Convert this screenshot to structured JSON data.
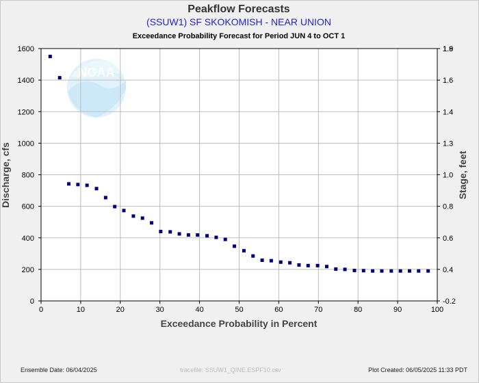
{
  "chart_data": {
    "type": "scatter",
    "title": "Peakflow Forecasts",
    "subtitle": "(SSUW1) SF SKOKOMISH - NEAR UNION",
    "period_label": "Exceedance Probability Forecast for Period JUN 4 to OCT 1",
    "xlabel": "Exceedance Probability in Percent",
    "ylabel": "Discharge, cfs",
    "y2label": "Stage, feet",
    "xlim": [
      0,
      100
    ],
    "ylim": [
      0,
      1600
    ],
    "x_ticks": [
      0,
      10,
      20,
      30,
      40,
      50,
      60,
      70,
      80,
      90,
      100
    ],
    "y_ticks": [
      0,
      200,
      400,
      600,
      800,
      1000,
      1200,
      1400,
      1600
    ],
    "y2_ticks": [
      "-0.2",
      "0.4",
      "0.6",
      "0.8",
      "1.0",
      "1.3",
      "1.4",
      "1.6",
      "1.8",
      "1.9"
    ],
    "grid": true,
    "marker_color": "#00007f",
    "points": [
      {
        "x": 2.3,
        "y": 1550
      },
      {
        "x": 4.7,
        "y": 1415
      },
      {
        "x": 7.0,
        "y": 742
      },
      {
        "x": 9.3,
        "y": 738
      },
      {
        "x": 11.6,
        "y": 733
      },
      {
        "x": 14.0,
        "y": 712
      },
      {
        "x": 16.3,
        "y": 655
      },
      {
        "x": 18.6,
        "y": 598
      },
      {
        "x": 20.9,
        "y": 573
      },
      {
        "x": 23.3,
        "y": 538
      },
      {
        "x": 25.6,
        "y": 525
      },
      {
        "x": 27.9,
        "y": 495
      },
      {
        "x": 30.2,
        "y": 440
      },
      {
        "x": 32.6,
        "y": 438
      },
      {
        "x": 34.9,
        "y": 425
      },
      {
        "x": 37.2,
        "y": 418
      },
      {
        "x": 39.5,
        "y": 418
      },
      {
        "x": 41.9,
        "y": 413
      },
      {
        "x": 44.2,
        "y": 403
      },
      {
        "x": 46.5,
        "y": 390
      },
      {
        "x": 48.8,
        "y": 347
      },
      {
        "x": 51.2,
        "y": 318
      },
      {
        "x": 53.5,
        "y": 285
      },
      {
        "x": 55.8,
        "y": 258
      },
      {
        "x": 58.1,
        "y": 255
      },
      {
        "x": 60.5,
        "y": 246
      },
      {
        "x": 62.8,
        "y": 242
      },
      {
        "x": 65.1,
        "y": 228
      },
      {
        "x": 67.4,
        "y": 224
      },
      {
        "x": 69.8,
        "y": 224
      },
      {
        "x": 72.1,
        "y": 218
      },
      {
        "x": 74.4,
        "y": 202
      },
      {
        "x": 76.7,
        "y": 200
      },
      {
        "x": 79.1,
        "y": 193
      },
      {
        "x": 81.4,
        "y": 192
      },
      {
        "x": 83.7,
        "y": 190
      },
      {
        "x": 86.0,
        "y": 190
      },
      {
        "x": 88.4,
        "y": 190
      },
      {
        "x": 90.7,
        "y": 190
      },
      {
        "x": 93.0,
        "y": 190
      },
      {
        "x": 95.3,
        "y": 190
      },
      {
        "x": 97.7,
        "y": 190
      }
    ]
  },
  "footer": {
    "ensemble_date": "Ensemble Date: 06/04/2025",
    "tracefile": "tracefile: SSUW1_QINE.ESPF10.csv",
    "plot_created": "Plot Created: 06/05/2025 11:33 PDT"
  },
  "watermark": {
    "text": "NOAA",
    "icon": "noaa-logo-icon",
    "color": "#d8eef8"
  }
}
